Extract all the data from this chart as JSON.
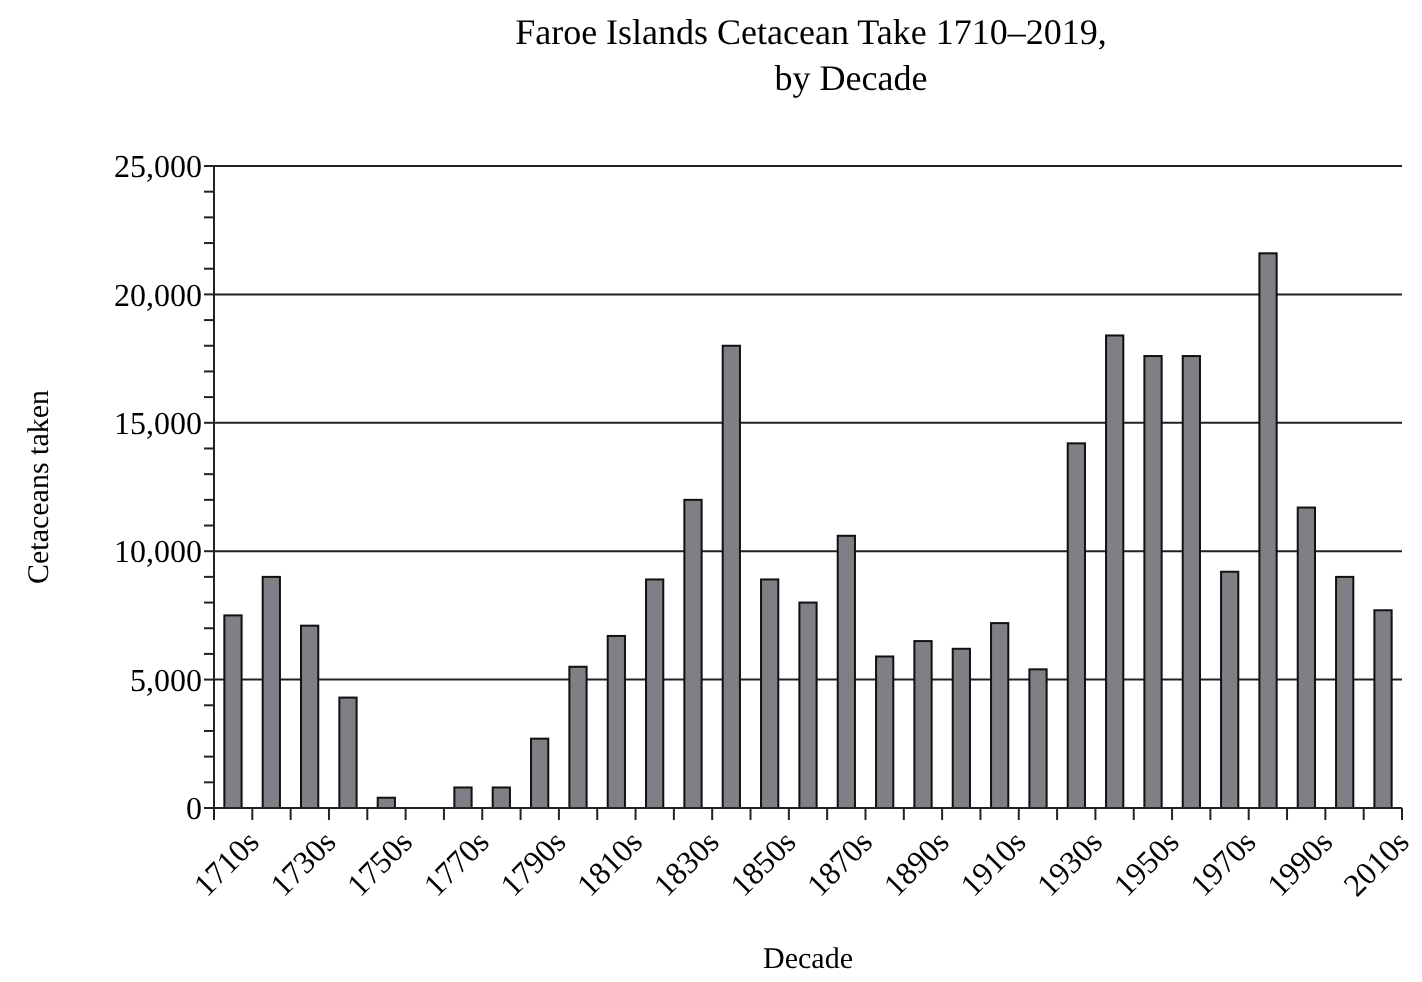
{
  "chart_data": {
    "type": "bar",
    "title": "Faroe Islands Cetacean Take 1710–2019,\nby Decade",
    "xlabel": "Decade",
    "ylabel": "Cetaceans taken",
    "categories": [
      "1710s",
      null,
      "1730s",
      null,
      "1750s",
      null,
      "1770s",
      null,
      "1790s",
      null,
      "1810s",
      null,
      "1830s",
      null,
      "1850s",
      null,
      "1870s",
      null,
      "1890s",
      null,
      "1910s",
      null,
      "1930s",
      null,
      "1950s",
      null,
      "1970s",
      null,
      "1990s",
      null,
      "2010s"
    ],
    "values": [
      7500,
      9000,
      7100,
      4300,
      400,
      0,
      800,
      800,
      2700,
      5500,
      6700,
      8900,
      12000,
      18000,
      8900,
      8000,
      10600,
      5900,
      6500,
      6200,
      7200,
      5400,
      14200,
      18400,
      17600,
      17600,
      9200,
      21600,
      11700,
      9000,
      7700
    ],
    "color": "#7f7f85",
    "ylim": [
      0,
      25000
    ],
    "yticks": [
      0,
      {
        "value": 1000,
        "label": null
      },
      {
        "value": 2000,
        "label": null
      },
      {
        "value": 3000,
        "label": null
      },
      {
        "value": 4000,
        "label": null
      },
      {
        "value": 5000,
        "label": "5,000"
      },
      {
        "value": 6000,
        "label": null
      },
      {
        "value": 7000,
        "label": null
      },
      {
        "value": 8000,
        "label": null
      },
      {
        "value": 9000,
        "label": null
      },
      {
        "value": 10000,
        "label": "10,000"
      },
      {
        "value": 11000,
        "label": null
      },
      {
        "value": 12000,
        "label": null
      },
      {
        "value": 13000,
        "label": null
      },
      {
        "value": 14000,
        "label": null
      },
      {
        "value": 15000,
        "label": "15,000"
      },
      {
        "value": 16000,
        "label": null
      },
      {
        "value": 17000,
        "label": null
      },
      {
        "value": 18000,
        "label": null
      },
      {
        "value": 19000,
        "label": null
      },
      {
        "value": 20000,
        "label": "20,000"
      },
      {
        "value": 21000,
        "label": null
      },
      {
        "value": 22000,
        "label": null
      },
      {
        "value": 23000,
        "label": null
      },
      {
        "value": 24000,
        "label": null
      },
      {
        "value": 25000,
        "label": "25,000"
      }
    ],
    "grid": "y"
  }
}
